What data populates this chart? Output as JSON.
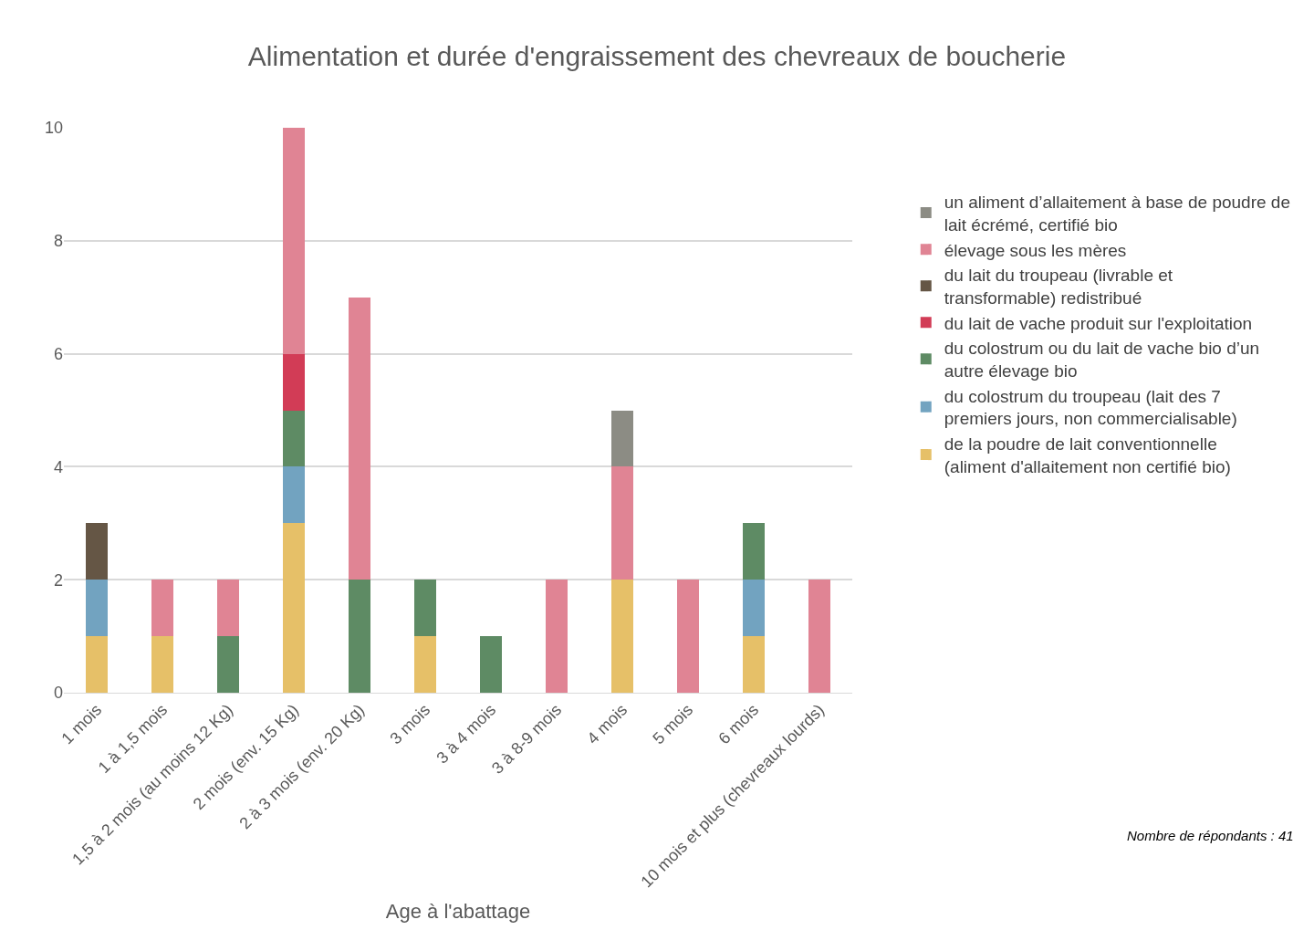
{
  "chart_data": {
    "type": "bar",
    "stacked": true,
    "title": "Alimentation et durée d'engraissement des chevreaux de boucherie",
    "xlabel": "Age à l'abattage",
    "categories": [
      "1 mois",
      "1 à 1,5 mois",
      "1,5 à 2 mois (au moins 12 Kg)",
      "2 mois (env. 15 Kg)",
      "2 à 3 mois (env. 20 Kg)",
      "3 mois",
      "3 à 4 mois",
      "3 à 8-9 mois",
      "4 mois",
      "5 mois",
      "6 mois",
      "10 mois et plus (chevreaux lourds)"
    ],
    "series": [
      {
        "name": "de la poudre de lait conventionnelle (aliment d'allaitement non certifié bio)",
        "color": "#e6c068",
        "values": [
          1,
          1,
          0,
          3,
          0,
          1,
          0,
          0,
          2,
          0,
          1,
          0
        ]
      },
      {
        "name": "du colostrum du troupeau (lait des 7 premiers jours, non commercialisable)",
        "color": "#72a3c0",
        "values": [
          1,
          0,
          0,
          1,
          0,
          0,
          0,
          0,
          0,
          0,
          1,
          0
        ]
      },
      {
        "name": "du colostrum ou du lait de vache bio d’un autre élevage bio",
        "color": "#5e8b64",
        "values": [
          0,
          0,
          1,
          1,
          2,
          1,
          1,
          0,
          0,
          0,
          1,
          0
        ]
      },
      {
        "name": "du lait de vache produit sur l'exploitation",
        "color": "#d23c56",
        "values": [
          0,
          0,
          0,
          1,
          0,
          0,
          0,
          0,
          0,
          0,
          0,
          0
        ]
      },
      {
        "name": "du lait du troupeau (livrable et transformable) redistribué",
        "color": "#655645",
        "values": [
          1,
          0,
          0,
          0,
          0,
          0,
          0,
          0,
          0,
          0,
          0,
          0
        ]
      },
      {
        "name": "élevage sous les mères",
        "color": "#e08494",
        "values": [
          0,
          1,
          1,
          4,
          5,
          0,
          0,
          2,
          2,
          2,
          0,
          2
        ]
      },
      {
        "name": "un aliment d’allaitement à base de poudre de lait écrémé, certifié bio",
        "color": "#8c8c84",
        "values": [
          0,
          0,
          0,
          0,
          0,
          0,
          0,
          0,
          1,
          0,
          0,
          0
        ]
      }
    ],
    "ylim": [
      0,
      10
    ],
    "yticks": [
      0,
      2,
      4,
      6,
      8,
      10
    ],
    "grid": "y",
    "legend": "right",
    "annotations": [
      "Nombre de répondants : 41"
    ]
  }
}
